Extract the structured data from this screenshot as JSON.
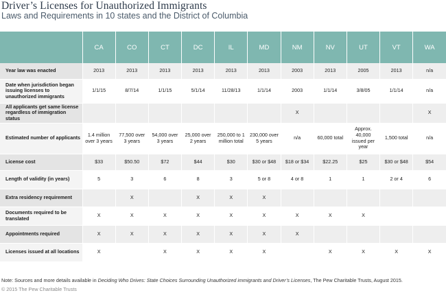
{
  "title": "Driver’s Licenses for Unauthorized Immigrants",
  "subtitle": "Laws and Requirements in 10 states and the District of Columbia",
  "columns": [
    "CA",
    "CO",
    "CT",
    "DC",
    "IL",
    "MD",
    "NM",
    "NV",
    "UT",
    "VT",
    "WA"
  ],
  "rows": [
    {
      "label": "Year  law was enacted",
      "cells": [
        "2013",
        "2013",
        "2013",
        "2013",
        "2013",
        "2013",
        "2003",
        "2013",
        "2005",
        "2013",
        "n/a"
      ]
    },
    {
      "label": "Date when jurisdiction began issuing licenses to unauthorized immigrants",
      "cells": [
        "1/1/15",
        "8/7/14",
        "1/1/15",
        "5/1/14",
        "11/28/13",
        "1/1/14",
        "2003",
        "1/1/14",
        "3/8/05",
        "1/1/14",
        "n/a"
      ]
    },
    {
      "label": "All applicants get same license regardless of immigration status",
      "cells": [
        "",
        "",
        "",
        "",
        "",
        "",
        "X",
        "",
        "",
        "",
        "X"
      ]
    },
    {
      "label": "Estimated number of applicants",
      "cells": [
        "1.4 million over 3 years",
        "77,500 over 3 years",
        "54,000 over 3 years",
        "25,000 over 2 years",
        "250,000 to 1 million total",
        "230,000 over 5 years",
        "n/a",
        "60,000 total",
        "Approx. 40,000 issued per year",
        "1,500 total",
        "n/a"
      ]
    },
    {
      "label": "License cost",
      "cells": [
        "$33",
        "$50.50",
        "$72",
        "$44",
        "$30",
        "$30 or $48",
        "$18 or $34",
        "$22.25",
        "$25",
        "$30 or $48",
        "$54"
      ]
    },
    {
      "label": "Length of validity (in years)",
      "cells": [
        "5",
        "3",
        "6",
        "8",
        "3",
        "5 or 8",
        "4 or 8",
        "1",
        "1",
        "2 or 4",
        "6"
      ]
    },
    {
      "label": "Extra residency requirement",
      "cells": [
        "",
        "X",
        "",
        "X",
        "X",
        "X",
        "",
        "",
        "",
        "",
        ""
      ]
    },
    {
      "label": "Documents required to  be translated",
      "cells": [
        "X",
        "X",
        "X",
        "X",
        "X",
        "X",
        "X",
        "X",
        "X",
        "",
        ""
      ]
    },
    {
      "label": "Appointments required",
      "cells": [
        "X",
        "X",
        "X",
        "X",
        "X",
        "X",
        "X",
        "",
        "",
        "",
        ""
      ]
    },
    {
      "label": "Licenses issued at all locations",
      "cells": [
        "X",
        "",
        "X",
        "X",
        "X",
        "X",
        "",
        "X",
        "X",
        "X",
        "X"
      ]
    }
  ],
  "note": {
    "prefix": "Note: Sources and more details available in ",
    "italic": "Deciding Who Drives: State Choices Surrounding Unauthorized immigrants and Driver’s Licenses",
    "suffix": ", The Pew Charitable Trusts, August 2015."
  },
  "copyright": "© 2015 The Pew Charitable Trusts"
}
